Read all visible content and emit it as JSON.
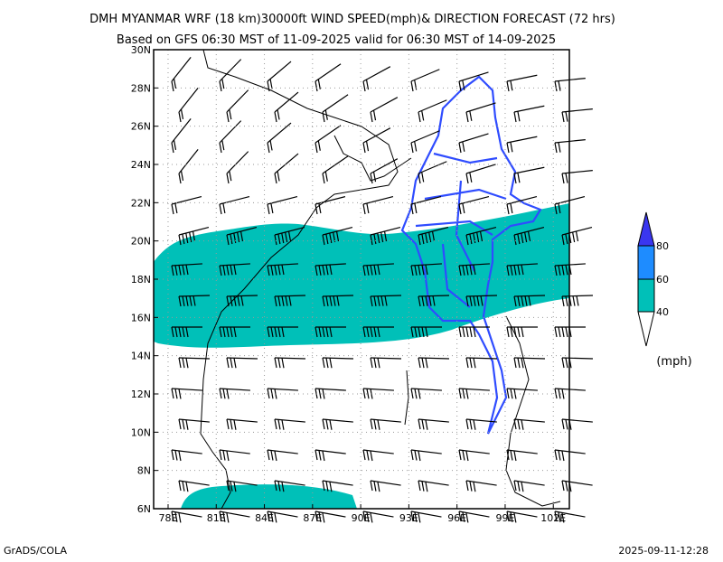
{
  "header": {
    "title": "DMH MYANMAR WRF (18 km)30000ft WIND SPEED(mph)& DIRECTION FORECAST (72 hrs)",
    "subtitle": "Based on GFS 06:30 MST of 11-09-2025 valid for 06:30 MST of 14-09-2025"
  },
  "map": {
    "lonlim": [
      77.1,
      103
    ],
    "latlim": [
      6,
      30
    ],
    "lon_ticks": [
      {
        "value": 78,
        "label": "78E"
      },
      {
        "value": 81,
        "label": "81E"
      },
      {
        "value": 84,
        "label": "84E"
      },
      {
        "value": 87,
        "label": "87E"
      },
      {
        "value": 90,
        "label": "90E"
      },
      {
        "value": 93,
        "label": "93E"
      },
      {
        "value": 96,
        "label": "96E"
      },
      {
        "value": 99,
        "label": "99E"
      },
      {
        "value": 102,
        "label": "102E"
      }
    ],
    "lat_ticks": [
      {
        "value": 6,
        "label": "6N"
      },
      {
        "value": 8,
        "label": "8N"
      },
      {
        "value": 10,
        "label": "10N"
      },
      {
        "value": 12,
        "label": "12N"
      },
      {
        "value": 14,
        "label": "14N"
      },
      {
        "value": 16,
        "label": "16N"
      },
      {
        "value": 18,
        "label": "18N"
      },
      {
        "value": 20,
        "label": "20N"
      },
      {
        "value": 22,
        "label": "22N"
      },
      {
        "value": 24,
        "label": "24N"
      },
      {
        "value": 26,
        "label": "26N"
      },
      {
        "value": 28,
        "label": "28N"
      },
      {
        "value": 30,
        "label": "30N"
      }
    ]
  },
  "legend": {
    "unit": "(mph)",
    "levels": [
      40,
      60,
      80
    ],
    "colors": [
      "#00c0b8",
      "#1e8cff",
      "#3a36f0"
    ]
  },
  "footer": {
    "left": "GrADS/COLA",
    "right": "2025-09-11-12:28"
  }
}
